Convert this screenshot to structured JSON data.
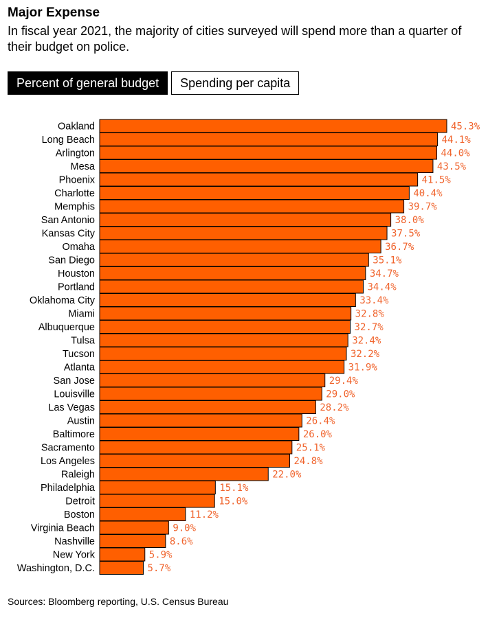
{
  "header": {
    "title": "Major Expense",
    "subtitle": "In fiscal year 2021, the majority of cities surveyed will spend more than a quarter of their budget on police."
  },
  "tabs": [
    {
      "label": "Percent of general budget",
      "active": true
    },
    {
      "label": "Spending per capita",
      "active": false
    }
  ],
  "colors": {
    "bar": "#ff5f00",
    "value_label": "#f0642d"
  },
  "chart_data": {
    "type": "bar",
    "orientation": "horizontal",
    "categories": [
      "Oakland",
      "Long Beach",
      "Arlington",
      "Mesa",
      "Phoenix",
      "Charlotte",
      "Memphis",
      "San Antonio",
      "Kansas City",
      "Omaha",
      "San Diego",
      "Houston",
      "Portland",
      "Oklahoma City",
      "Miami",
      "Albuquerque",
      "Tulsa",
      "Tucson",
      "Atlanta",
      "San Jose",
      "Louisville",
      "Las Vegas",
      "Austin",
      "Baltimore",
      "Sacramento",
      "Los Angeles",
      "Raleigh",
      "Philadelphia",
      "Detroit",
      "Boston",
      "Virginia Beach",
      "Nashville",
      "New York",
      "Washington, D.C."
    ],
    "values": [
      45.3,
      44.1,
      44.0,
      43.5,
      41.5,
      40.4,
      39.7,
      38.0,
      37.5,
      36.7,
      35.1,
      34.7,
      34.4,
      33.4,
      32.8,
      32.7,
      32.4,
      32.2,
      31.9,
      29.4,
      29.0,
      28.2,
      26.4,
      26.0,
      25.1,
      24.8,
      22.0,
      15.1,
      15.0,
      11.2,
      9.0,
      8.6,
      5.9,
      5.7
    ],
    "value_labels": [
      "45.3%",
      "44.1%",
      "44.0%",
      "43.5%",
      "41.5%",
      "40.4%",
      "39.7%",
      "38.0%",
      "37.5%",
      "36.7%",
      "35.1%",
      "34.7%",
      "34.4%",
      "33.4%",
      "32.8%",
      "32.7%",
      "32.4%",
      "32.2%",
      "31.9%",
      "29.4%",
      "29.0%",
      "28.2%",
      "26.4%",
      "26.0%",
      "25.1%",
      "24.8%",
      "22.0%",
      "15.1%",
      "15.0%",
      "11.2%",
      "9.0%",
      "8.6%",
      "5.9%",
      "5.7%"
    ],
    "xlim": [
      0,
      45.3
    ]
  },
  "footer": {
    "source": "Sources: Bloomberg reporting, U.S. Census Bureau"
  }
}
